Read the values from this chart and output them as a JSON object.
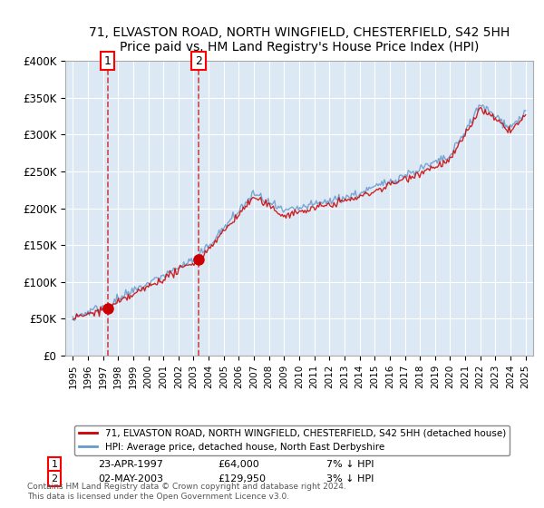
{
  "title": "71, ELVASTON ROAD, NORTH WINGFIELD, CHESTERFIELD, S42 5HH",
  "subtitle": "Price paid vs. HM Land Registry's House Price Index (HPI)",
  "legend_label_red": "71, ELVASTON ROAD, NORTH WINGFIELD, CHESTERFIELD, S42 5HH (detached house)",
  "legend_label_blue": "HPI: Average price, detached house, North East Derbyshire",
  "sale1_label": "1",
  "sale1_date": "23-APR-1997",
  "sale1_price": "£64,000",
  "sale1_hpi": "7% ↓ HPI",
  "sale2_label": "2",
  "sale2_date": "02-MAY-2003",
  "sale2_price": "£129,950",
  "sale2_hpi": "3% ↓ HPI",
  "footnote": "Contains HM Land Registry data © Crown copyright and database right 2024.\nThis data is licensed under the Open Government Licence v3.0.",
  "background_color": "#ffffff",
  "plot_bg_color": "#dce9f5",
  "grid_color": "#ffffff",
  "red_color": "#cc0000",
  "blue_color": "#6699cc",
  "ylim": [
    0,
    400000
  ],
  "yticks": [
    0,
    50000,
    100000,
    150000,
    200000,
    250000,
    300000,
    350000,
    400000
  ],
  "xlim_start": 1994.5,
  "xlim_end": 2025.5,
  "sale1_year": 1997.31,
  "sale1_value": 64000,
  "sale2_year": 2003.33,
  "sale2_value": 129950
}
